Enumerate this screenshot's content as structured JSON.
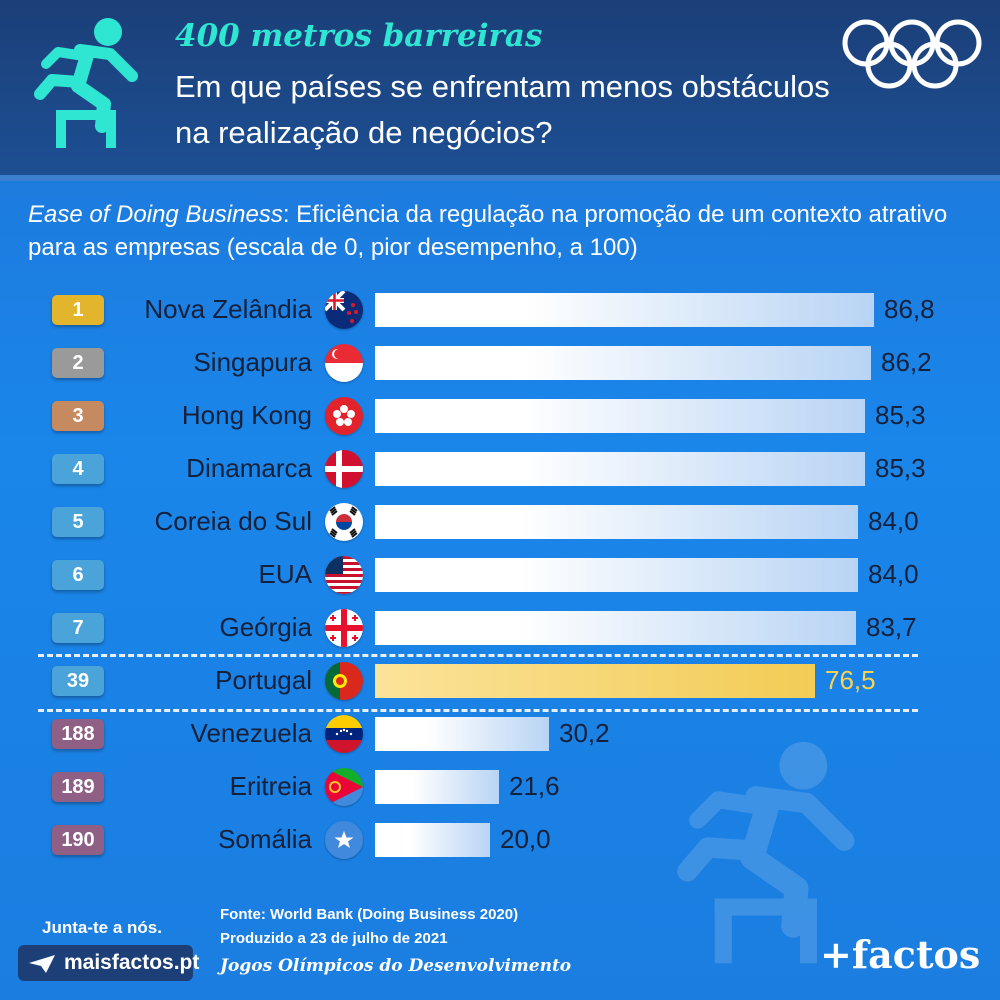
{
  "header": {
    "kicker": "400 metros barreiras",
    "title": "Em que países se enfrentam menos obstáculos na realização de negócios?"
  },
  "subtitle": {
    "em": "Ease of Doing Business",
    "rest": ": Eficiência da regulação na promoção de um contexto atrativo para as empresas (escala de 0, pior desempenho, a 100)"
  },
  "chart_data": {
    "type": "bar",
    "orientation": "horizontal",
    "title": "",
    "xlim": [
      0,
      100
    ],
    "rows": [
      {
        "rank": "1",
        "country": "Nova Zelândia",
        "value": 86.8,
        "label": "86,8",
        "flag": "new-zealand",
        "badge_color": "#e3b52d",
        "highlight": false
      },
      {
        "rank": "2",
        "country": "Singapura",
        "value": 86.2,
        "label": "86,2",
        "flag": "singapore",
        "badge_color": "#9a9a9a",
        "highlight": false
      },
      {
        "rank": "3",
        "country": "Hong Kong",
        "value": 85.3,
        "label": "85,3",
        "flag": "hong-kong",
        "badge_color": "#c58a60",
        "highlight": false
      },
      {
        "rank": "4",
        "country": "Dinamarca",
        "value": 85.3,
        "label": "85,3",
        "flag": "denmark",
        "badge_color": "#4aa3d9",
        "highlight": false
      },
      {
        "rank": "5",
        "country": "Coreia do Sul",
        "value": 84.0,
        "label": "84,0",
        "flag": "south-korea",
        "badge_color": "#4aa3d9",
        "highlight": false
      },
      {
        "rank": "6",
        "country": "EUA",
        "value": 84.0,
        "label": "84,0",
        "flag": "usa",
        "badge_color": "#4aa3d9",
        "highlight": false
      },
      {
        "rank": "7",
        "country": "Geórgia",
        "value": 83.7,
        "label": "83,7",
        "flag": "georgia",
        "badge_color": "#4aa3d9",
        "highlight": false
      },
      {
        "rank": "39",
        "country": "Portugal",
        "value": 76.5,
        "label": "76,5",
        "flag": "portugal",
        "badge_color": "#4aa3d9",
        "highlight": true
      },
      {
        "rank": "188",
        "country": "Venezuela",
        "value": 30.2,
        "label": "30,2",
        "flag": "venezuela",
        "badge_color": "#8f5f86",
        "highlight": false
      },
      {
        "rank": "189",
        "country": "Eritreia",
        "value": 21.6,
        "label": "21,6",
        "flag": "eritrea",
        "badge_color": "#8f5f86",
        "highlight": false
      },
      {
        "rank": "190",
        "country": "Somália",
        "value": 20.0,
        "label": "20,0",
        "flag": "somalia",
        "badge_color": "#8f5f86",
        "highlight": false
      }
    ]
  },
  "footer": {
    "join": "Junta-te a nós.",
    "site": "maisfactos.pt",
    "source": "Fonte: World Bank (Doing Business 2020)",
    "produced": "Produzido a 23 de julho de 2021",
    "series": "Jogos Olímpicos do Desenvolvimento",
    "brand": "+factos"
  },
  "icons": {
    "runner": "hurdler-icon",
    "rings": "olympic-rings-icon",
    "plane": "paper-plane-icon"
  }
}
